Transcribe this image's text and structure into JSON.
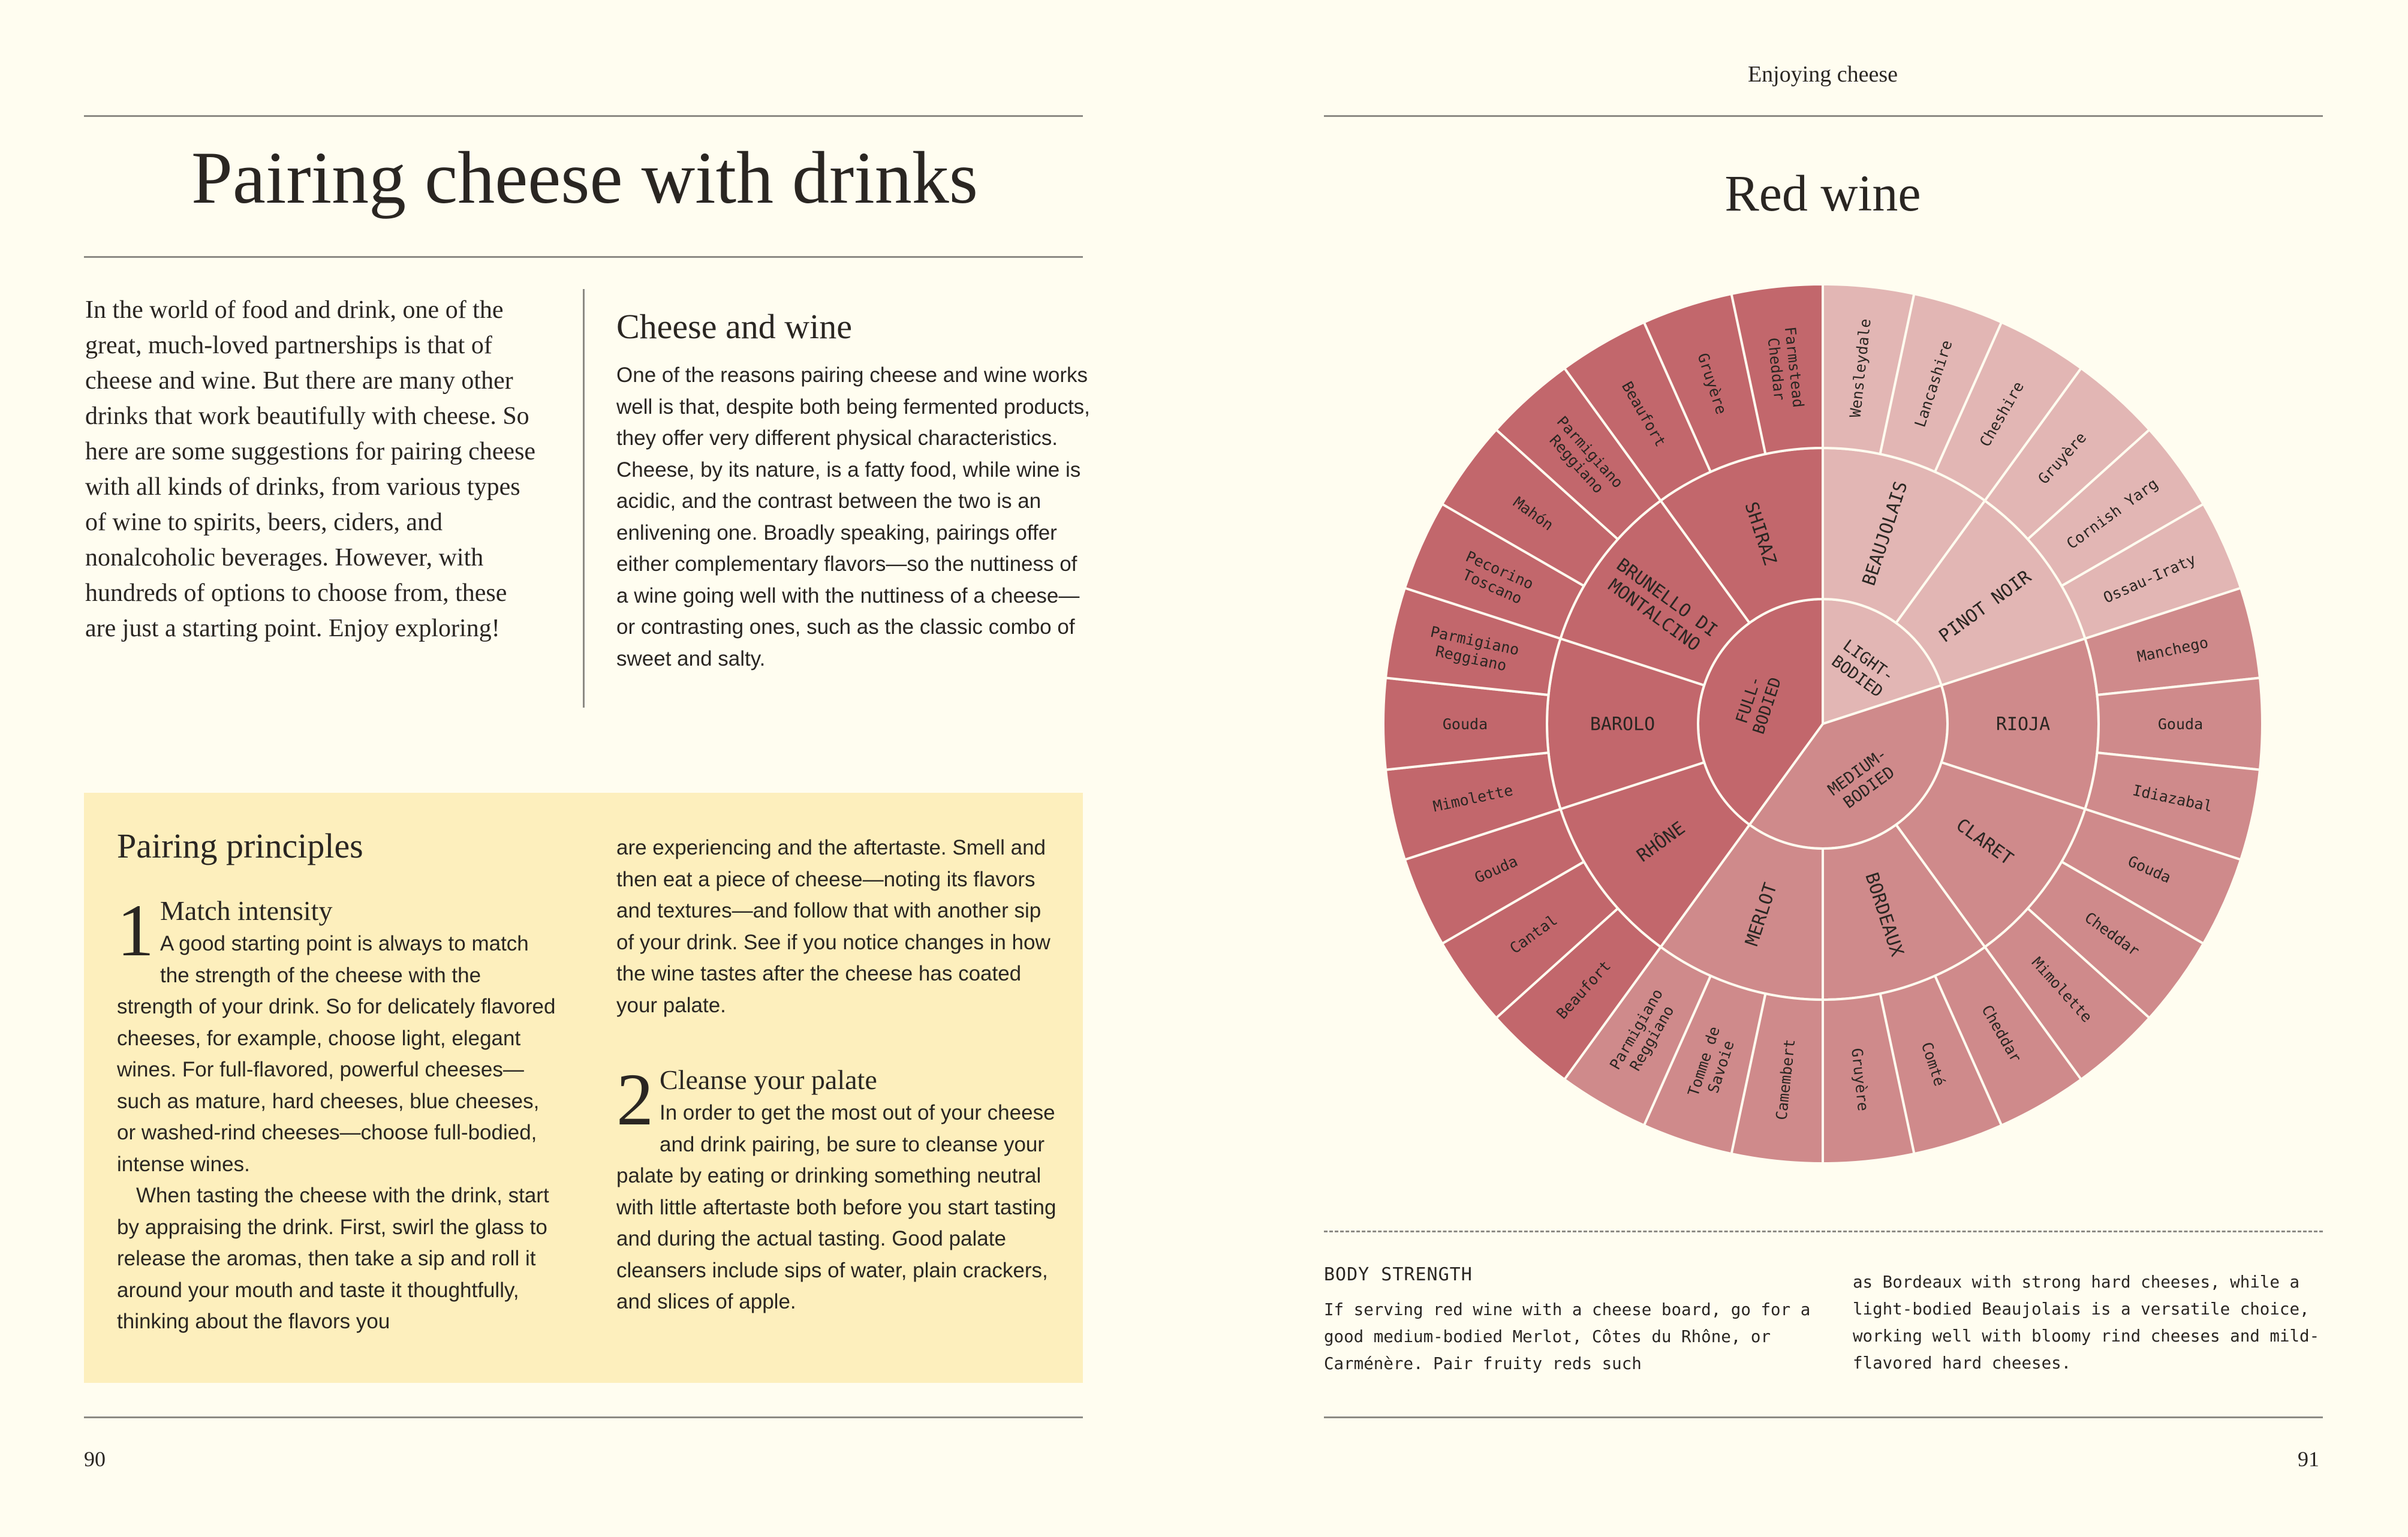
{
  "left_page": {
    "title": "Pairing cheese with drinks",
    "intro": "In the world of food and drink, one of the great, much-loved partnerships is that of cheese and wine. But there are many other drinks that work beautifully with cheese. So here are some suggestions for pairing cheese with all kinds of drinks, from various types of wine to spirits, beers, ciders, and nonalcoholic beverages. However, with hundreds of options to choose from, these are just a starting point. Enjoy exploring!",
    "cheese_and_wine": {
      "heading": "Cheese and wine",
      "body": "One of the reasons pairing cheese and wine works well is that, despite both being fermented products, they offer very different physical characteristics. Cheese, by its nature, is a fatty food, while wine is acidic, and the contrast between the two is an enlivening one. Broadly speaking, pairings offer either complementary flavors—so the nuttiness of a wine going well with the nuttiness of a cheese—or contrasting ones, such as the classic combo of sweet and salty."
    },
    "principles": {
      "heading": "Pairing principles",
      "step1_num": "1",
      "step1_title": "Match intensity",
      "step1_body": "A good starting point is always to match the strength of the cheese with the strength of your drink. So for delicately flavored cheeses, for example, choose light, elegant wines. For full-flavored, powerful cheeses—such as mature, hard cheeses, blue cheeses, or washed-rind cheeses—choose full-bodied, intense wines.",
      "step1_body2": "When tasting the cheese with the drink, start by appraising the drink. First, swirl the glass to release the aromas, then take a sip and roll it around your mouth and taste it thoughtfully, thinking about the flavors you",
      "step1_cont": "are experiencing and the aftertaste. Smell and then eat a piece of cheese—noting its flavors and textures—and follow that with another sip of your drink. See if you notice changes in how the wine tastes after the cheese has coated your palate.",
      "step2_num": "2",
      "step2_title": "Cleanse your palate",
      "step2_body": "In order to get the most out of your cheese and drink pairing, be sure to cleanse your palate by eating or drinking something neutral with little aftertaste both before you start tasting and during the actual tasting. Good palate cleansers include sips of water, plain crackers, and slices of apple."
    },
    "page_number": "90"
  },
  "right_page": {
    "running_head": "Enjoying cheese",
    "title": "Red wine",
    "body_strength": {
      "heading": "BODY STRENGTH",
      "col1": "If serving red wine with a cheese board, go for a good medium-bodied Merlot, Côtes du Rhône, or Carménère. Pair fruity reds such",
      "col2": "as Bordeaux with strong hard cheeses, while a light-bodied Beaujolais is a versatile choice, working well with bloomy rind cheeses and mild-flavored hard cheeses."
    },
    "page_number": "91"
  },
  "wheel": {
    "colors": {
      "light": "#e2b6b4",
      "medium": "#cf8a8b",
      "full": "#c2676c",
      "line": "#fffdf0"
    },
    "groups": [
      {
        "body": [
          "LIGHT-",
          "BODIED"
        ],
        "tone": "light",
        "wines": [
          {
            "name": "BEAUJOLAIS",
            "cheeses": [
              [
                "Wensleydale"
              ],
              [
                "Lancashire"
              ],
              [
                "Cheshire"
              ]
            ]
          },
          {
            "name": "PINOT NOIR",
            "cheeses": [
              [
                "Gruyère"
              ],
              [
                "Cornish Yarg"
              ],
              [
                "Ossau-Iraty"
              ]
            ]
          }
        ]
      },
      {
        "body": [
          "MEDIUM-",
          "BODIED"
        ],
        "tone": "medium",
        "wines": [
          {
            "name": "RIOJA",
            "cheeses": [
              [
                "Manchego"
              ],
              [
                "Gouda"
              ],
              [
                "Idiazabal"
              ]
            ]
          },
          {
            "name": "CLARET",
            "cheeses": [
              [
                "Gouda"
              ],
              [
                "Cheddar"
              ],
              [
                "Mimolette"
              ]
            ]
          },
          {
            "name": "BORDEAUX",
            "cheeses": [
              [
                "Cheddar"
              ],
              [
                "Comté"
              ],
              [
                "Gruyère"
              ]
            ]
          },
          {
            "name": "MERLOT",
            "cheeses": [
              [
                "Camembert"
              ],
              [
                "Tomme de",
                "Savoie"
              ],
              [
                "Parmigiano",
                "Reggiano"
              ]
            ]
          }
        ]
      },
      {
        "body": [
          "FULL-",
          "BODIED"
        ],
        "tone": "full",
        "wines": [
          {
            "name": "RHÔNE",
            "cheeses": [
              [
                "Beaufort"
              ],
              [
                "Cantal"
              ],
              [
                "Gouda"
              ]
            ]
          },
          {
            "name": "BAROLO",
            "cheeses": [
              [
                "Mimolette"
              ],
              [
                "Gouda"
              ],
              [
                "Parmigiano",
                "Reggiano"
              ]
            ]
          },
          {
            "name": [
              "BRUNELLO DI",
              "MONTALCINO"
            ],
            "cheeses": [
              [
                "Pecorino",
                "Toscano"
              ],
              [
                "Mahón"
              ],
              [
                "Parmigiano",
                "Reggiano"
              ]
            ]
          },
          {
            "name": "SHIRAZ",
            "cheeses": [
              [
                "Beaufort"
              ],
              [
                "Gruyère"
              ],
              [
                "Farmstead",
                "Cheddar"
              ]
            ]
          }
        ]
      }
    ]
  }
}
